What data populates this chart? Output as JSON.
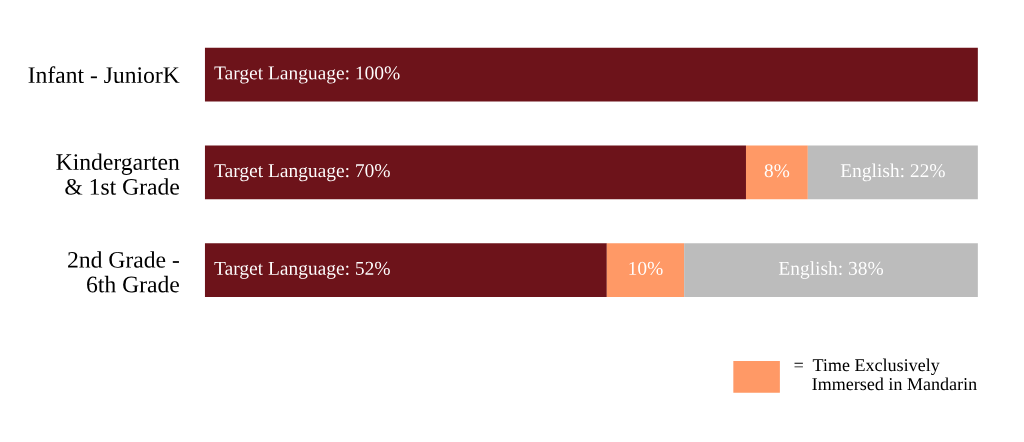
{
  "chart_data": {
    "type": "bar",
    "orientation": "horizontal",
    "stacked": true,
    "categories": [
      "Infant - JuniorK",
      "Kindergarten\n& 1st Grade",
      "2nd Grade -\n6th Grade"
    ],
    "series": [
      {
        "color": "#6d131a",
        "values": [
          100,
          70,
          52
        ],
        "value_labels": [
          "Target Language: 100%",
          "Target Language: 70%",
          "Target Language: 52%"
        ]
      },
      {
        "name": "=  Time Exclusively\n    Immersed in Mandarin",
        "color": "#ff9966",
        "values": [
          0,
          8,
          10
        ],
        "value_labels": [
          null,
          "8%",
          "10%"
        ]
      },
      {
        "color": "#bcbcbc",
        "values": [
          0,
          22,
          38
        ],
        "value_labels": [
          null,
          "English: 22%",
          "English: 38%"
        ]
      }
    ],
    "xlim": [
      0,
      100
    ],
    "tick_labels": "y",
    "grid": false,
    "legend": "bottom right"
  }
}
